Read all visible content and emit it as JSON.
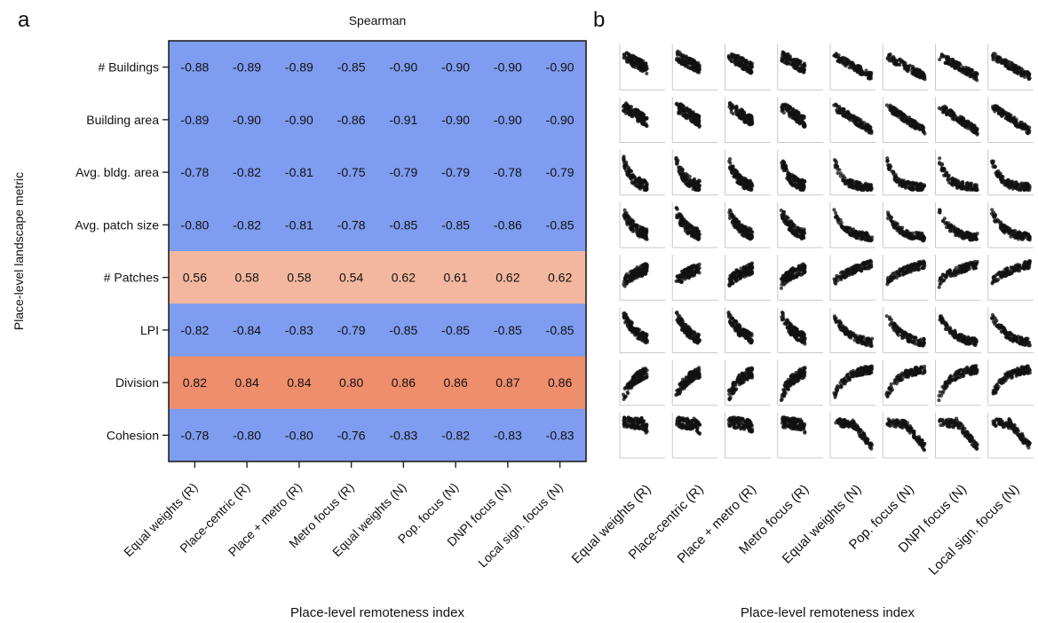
{
  "panels": {
    "a_label": "a",
    "b_label": "b"
  },
  "chart_data": [
    {
      "type": "heatmap",
      "title": "Spearman",
      "xlabel": "Place-level remoteness index",
      "ylabel": "Place-level landscape metric",
      "x_categories": [
        "Equal weights (R)",
        "Place-centric (R)",
        "Place + metro (R)",
        "Metro focus (R)",
        "Equal weights (N)",
        "Pop. focus (N)",
        "DNPI focus (N)",
        "Local sign. focus (N)"
      ],
      "y_categories": [
        "# Buildings",
        "Building area",
        "Avg. bldg. area",
        "Avg. patch size",
        "# Patches",
        "LPI",
        "Division",
        "Cohesion"
      ],
      "values": [
        [
          -0.88,
          -0.89,
          -0.89,
          -0.85,
          -0.9,
          -0.9,
          -0.9,
          -0.9
        ],
        [
          -0.89,
          -0.9,
          -0.9,
          -0.86,
          -0.91,
          -0.9,
          -0.9,
          -0.9
        ],
        [
          -0.78,
          -0.82,
          -0.81,
          -0.75,
          -0.79,
          -0.79,
          -0.78,
          -0.79
        ],
        [
          -0.8,
          -0.82,
          -0.81,
          -0.78,
          -0.85,
          -0.85,
          -0.86,
          -0.85
        ],
        [
          0.56,
          0.58,
          0.58,
          0.54,
          0.62,
          0.61,
          0.62,
          0.62
        ],
        [
          -0.82,
          -0.84,
          -0.83,
          -0.79,
          -0.85,
          -0.85,
          -0.85,
          -0.85
        ],
        [
          0.82,
          0.84,
          0.84,
          0.8,
          0.86,
          0.86,
          0.87,
          0.86
        ],
        [
          -0.78,
          -0.8,
          -0.8,
          -0.76,
          -0.83,
          -0.82,
          -0.83,
          -0.83
        ]
      ],
      "value_format": "2 decimals",
      "colors": {
        "negative": "#7e9cf0",
        "positive_light": "#f2b79e",
        "positive_strong": "#ee8e6c"
      }
    },
    {
      "type": "scatter",
      "title": "",
      "xlabel": "Place-level remoteness index",
      "ylabel": "",
      "x_categories": [
        "Equal weights (R)",
        "Place-centric (R)",
        "Place + metro (R)",
        "Metro focus (R)",
        "Equal weights (N)",
        "Pop. focus (N)",
        "DNPI focus (N)",
        "Local sign. focus (N)"
      ],
      "rows": 8,
      "cols": 8,
      "point_color": "#111111",
      "grid": false
    }
  ]
}
